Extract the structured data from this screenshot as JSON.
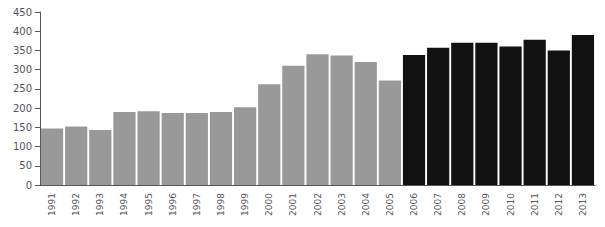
{
  "chart_data": {
    "type": "bar",
    "categories": [
      "1991",
      "1992",
      "1993",
      "1994",
      "1995",
      "1996",
      "1997",
      "1998",
      "1999",
      "2000",
      "2001",
      "2002",
      "2003",
      "2004",
      "2005",
      "2006",
      "2007",
      "2008",
      "2009",
      "2010",
      "2011",
      "2012",
      "2013"
    ],
    "values": [
      147,
      152,
      143,
      190,
      192,
      187,
      187,
      190,
      202,
      262,
      310,
      340,
      337,
      320,
      272,
      338,
      357,
      370,
      370,
      360,
      378,
      350,
      390
    ],
    "colors": [
      "#999999",
      "#999999",
      "#999999",
      "#999999",
      "#999999",
      "#999999",
      "#999999",
      "#999999",
      "#999999",
      "#999999",
      "#999999",
      "#999999",
      "#999999",
      "#999999",
      "#999999",
      "#111111",
      "#111111",
      "#111111",
      "#111111",
      "#111111",
      "#111111",
      "#111111",
      "#111111"
    ],
    "ylim": [
      0,
      450
    ],
    "yticks": [
      0,
      50,
      100,
      150,
      200,
      250,
      300,
      350,
      400,
      450
    ],
    "grid": false
  }
}
